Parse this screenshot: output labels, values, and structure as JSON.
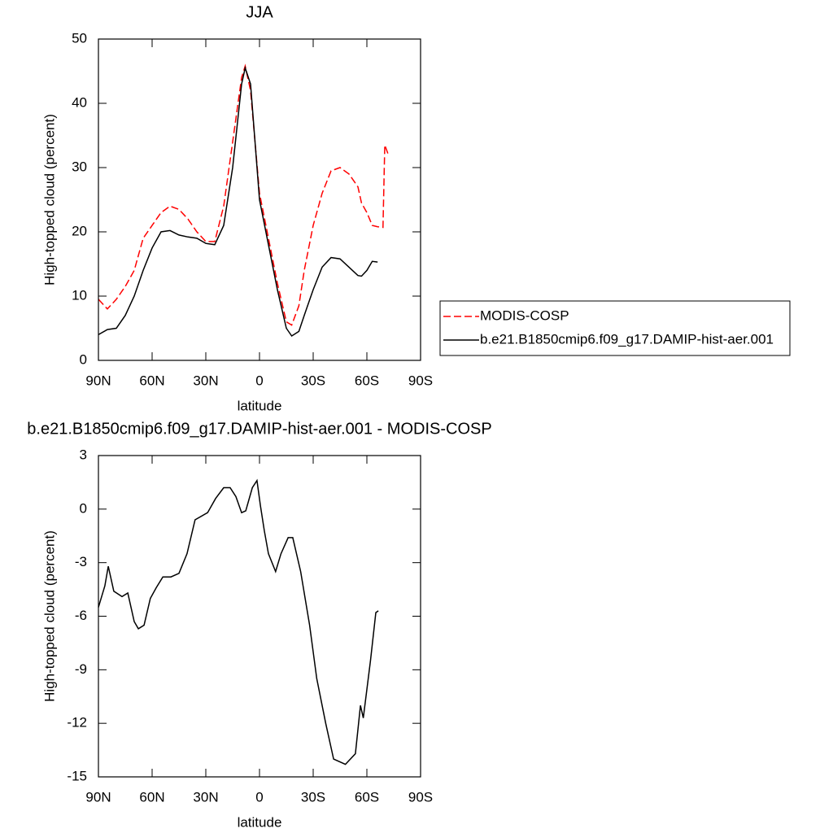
{
  "chart_data": [
    {
      "type": "line",
      "title": "JJA",
      "xlabel": "latitude",
      "ylabel": "High-topped cloud (percent)",
      "x": [
        90,
        85,
        80,
        75,
        70,
        65,
        60,
        55,
        50,
        45,
        40,
        35,
        30,
        25,
        20,
        15,
        10,
        8,
        5,
        0,
        -5,
        -10,
        -15,
        -18,
        -22,
        -25,
        -30,
        -35,
        -40,
        -45,
        -50,
        -55,
        -57,
        -60,
        -63,
        -66,
        -69,
        -70,
        -72
      ],
      "series": [
        {
          "name": "MODIS-COSP",
          "color": "#ff0000",
          "line_style": "dashed",
          "values": [
            9.5,
            8,
            9.5,
            11.5,
            14,
            19,
            21,
            23,
            24,
            23.5,
            22,
            20,
            18.5,
            18.5,
            24,
            34,
            44,
            45.8,
            42,
            26,
            19,
            12,
            6,
            5.5,
            8.5,
            14,
            21,
            26,
            29.5,
            30,
            29,
            27,
            24.5,
            23,
            21,
            20.8,
            20.7,
            33.5,
            32
          ]
        },
        {
          "name": "b.e21.B1850cmip6.f09_g17.DAMIP-hist-aer.001",
          "color": "#000000",
          "line_style": "solid",
          "values": [
            4,
            4.8,
            5,
            7,
            10,
            14,
            17.5,
            20,
            20.2,
            19.5,
            19.2,
            19,
            18.2,
            18,
            21,
            30,
            43,
            45.5,
            43,
            25,
            18,
            11,
            5,
            3.8,
            4.5,
            7,
            11,
            14.5,
            16,
            15.8,
            14.5,
            13.2,
            13.1,
            14,
            15.4,
            15.3,
            null,
            null,
            null
          ]
        }
      ],
      "xlim": [
        90,
        -90
      ],
      "xticks": [
        {
          "value": 90,
          "label": "90N"
        },
        {
          "value": 60,
          "label": "60N"
        },
        {
          "value": 30,
          "label": "30N"
        },
        0,
        {
          "value": -30,
          "label": "30S"
        },
        {
          "value": -60,
          "label": "60S"
        },
        {
          "value": -90,
          "label": "90S"
        }
      ],
      "ylim": [
        0,
        50
      ],
      "yticks": [
        0,
        10,
        20,
        30,
        40,
        50
      ],
      "legend": "right"
    },
    {
      "type": "line",
      "title": "b.e21.B1850cmip6.f09_g17.DAMIP-hist-aer.001 - MODIS-COSP",
      "xlabel": "latitude",
      "ylabel": "High-topped cloud (percent)",
      "x": [
        90,
        86.4,
        84.5,
        81.4,
        76.8,
        73.6,
        70,
        67.7,
        64.5,
        61,
        57.7,
        54,
        49.5,
        45,
        40.5,
        36,
        29,
        24.5,
        20,
        16.4,
        13.2,
        10,
        7.7,
        4,
        1.4,
        -0.5,
        -2.7,
        -5,
        -9,
        -12,
        -16,
        -18.6,
        -23,
        -28,
        -32,
        -37,
        -41.4,
        -48,
        -53.6,
        -56.4,
        -58,
        -62,
        -65,
        -66.4
      ],
      "series": [
        {
          "color": "#000000",
          "line_style": "solid",
          "values": [
            -5.5,
            -4.3,
            -3.2,
            -4.6,
            -4.9,
            -4.7,
            -6.3,
            -6.7,
            -6.5,
            -5,
            -4.4,
            -3.8,
            -3.8,
            -3.6,
            -2.5,
            -0.6,
            -0.2,
            0.6,
            1.2,
            1.2,
            0.7,
            -0.2,
            -0.1,
            1.2,
            1.6,
            0.2,
            -1.2,
            -2.5,
            -3.5,
            -2.5,
            -1.6,
            -1.6,
            -3.5,
            -6.5,
            -9.5,
            -12,
            -14,
            -14.3,
            -13.7,
            -11,
            -11.7,
            -8.5,
            -5.8,
            -5.7
          ]
        }
      ],
      "xlim": [
        90,
        -90
      ],
      "xticks": [
        {
          "value": 90,
          "label": "90N"
        },
        {
          "value": 60,
          "label": "60N"
        },
        {
          "value": 30,
          "label": "30N"
        },
        0,
        {
          "value": -30,
          "label": "30S"
        },
        {
          "value": -60,
          "label": "60S"
        },
        {
          "value": -90,
          "label": "90S"
        }
      ],
      "ylim": [
        -15,
        3
      ],
      "yticks": [
        -15,
        -12,
        -9,
        -6,
        -3,
        0,
        3
      ]
    }
  ]
}
